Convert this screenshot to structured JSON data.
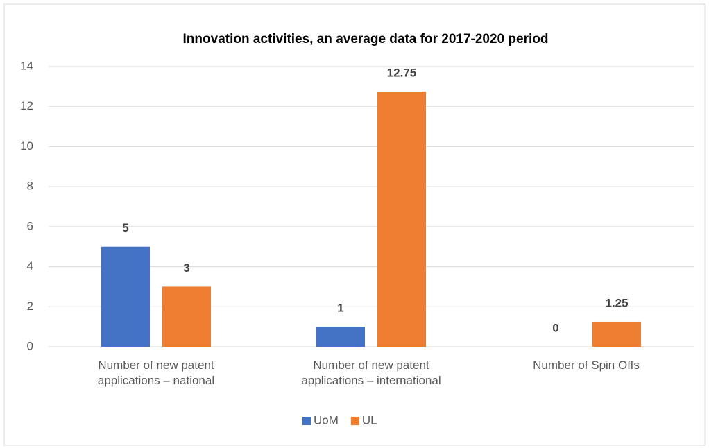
{
  "chart_data": {
    "type": "bar",
    "title": "Innovation activities, an average data for 2017-2020 period",
    "categories": [
      "Number of new patent applications – national",
      "Number of new patent applications – international",
      "Number of Spin Offs"
    ],
    "series": [
      {
        "name": "UoM",
        "color": "#4472c4",
        "values": [
          5,
          1,
          0
        ]
      },
      {
        "name": "UL",
        "color": "#ed7d31",
        "values": [
          3,
          12.75,
          1.25
        ]
      }
    ],
    "ylim": [
      0,
      14
    ],
    "yticks": [
      0,
      2,
      4,
      6,
      8,
      10,
      12,
      14
    ],
    "grid": true,
    "legend": "bottom"
  }
}
